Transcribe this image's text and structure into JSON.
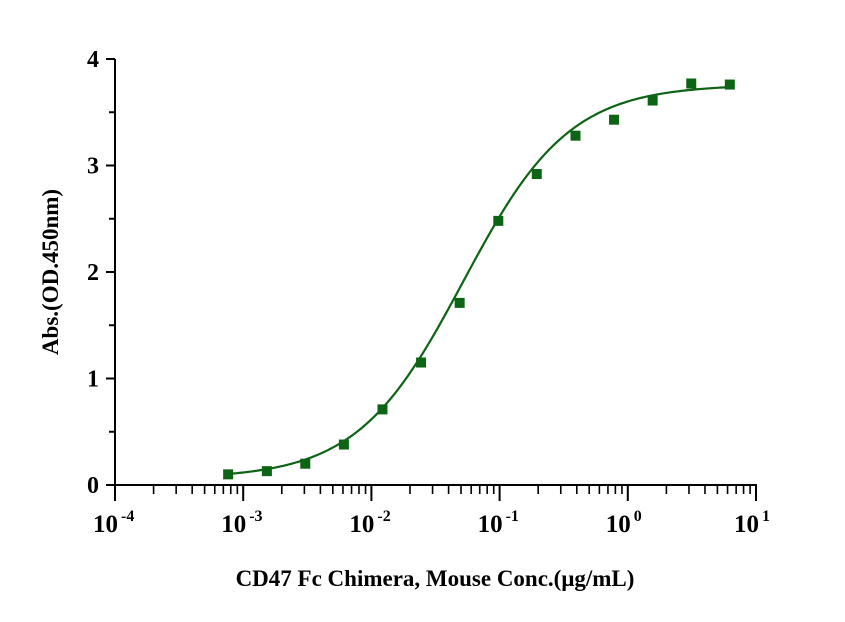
{
  "chart_data": {
    "type": "scatter",
    "title": "",
    "xlabel": "CD47 Fc Chimera, Mouse Conc.(μg/mL)",
    "ylabel": "Abs.(OD.450nm)",
    "xscale": "log10",
    "xlim": [
      0.0001,
      10
    ],
    "ylim": [
      0,
      4
    ],
    "x_tick_labels": [
      {
        "base": "10",
        "exp": "-4",
        "value": 0.0001
      },
      {
        "base": "10",
        "exp": "-3",
        "value": 0.001
      },
      {
        "base": "10",
        "exp": "-2",
        "value": 0.01
      },
      {
        "base": "10",
        "exp": "-1",
        "value": 0.1
      },
      {
        "base": "10",
        "exp": "0",
        "value": 1
      },
      {
        "base": "10",
        "exp": "1",
        "value": 10
      }
    ],
    "y_ticks": [
      "0",
      "1",
      "2",
      "3",
      "4"
    ],
    "grid": false,
    "legend": "none",
    "series": [
      {
        "name": "CD47 Fc Chimera, Mouse",
        "color": "#0d6414",
        "marker": "square",
        "fit": "4PL sigmoid",
        "x": [
          0.000763,
          0.00153,
          0.00305,
          0.0061,
          0.0122,
          0.0244,
          0.0488,
          0.0977,
          0.195,
          0.391,
          0.781,
          1.5625,
          3.125,
          6.25
        ],
        "y": [
          0.1,
          0.13,
          0.2,
          0.38,
          0.71,
          1.15,
          1.71,
          2.48,
          2.92,
          3.28,
          3.43,
          3.61,
          3.77,
          3.76
        ]
      }
    ]
  }
}
